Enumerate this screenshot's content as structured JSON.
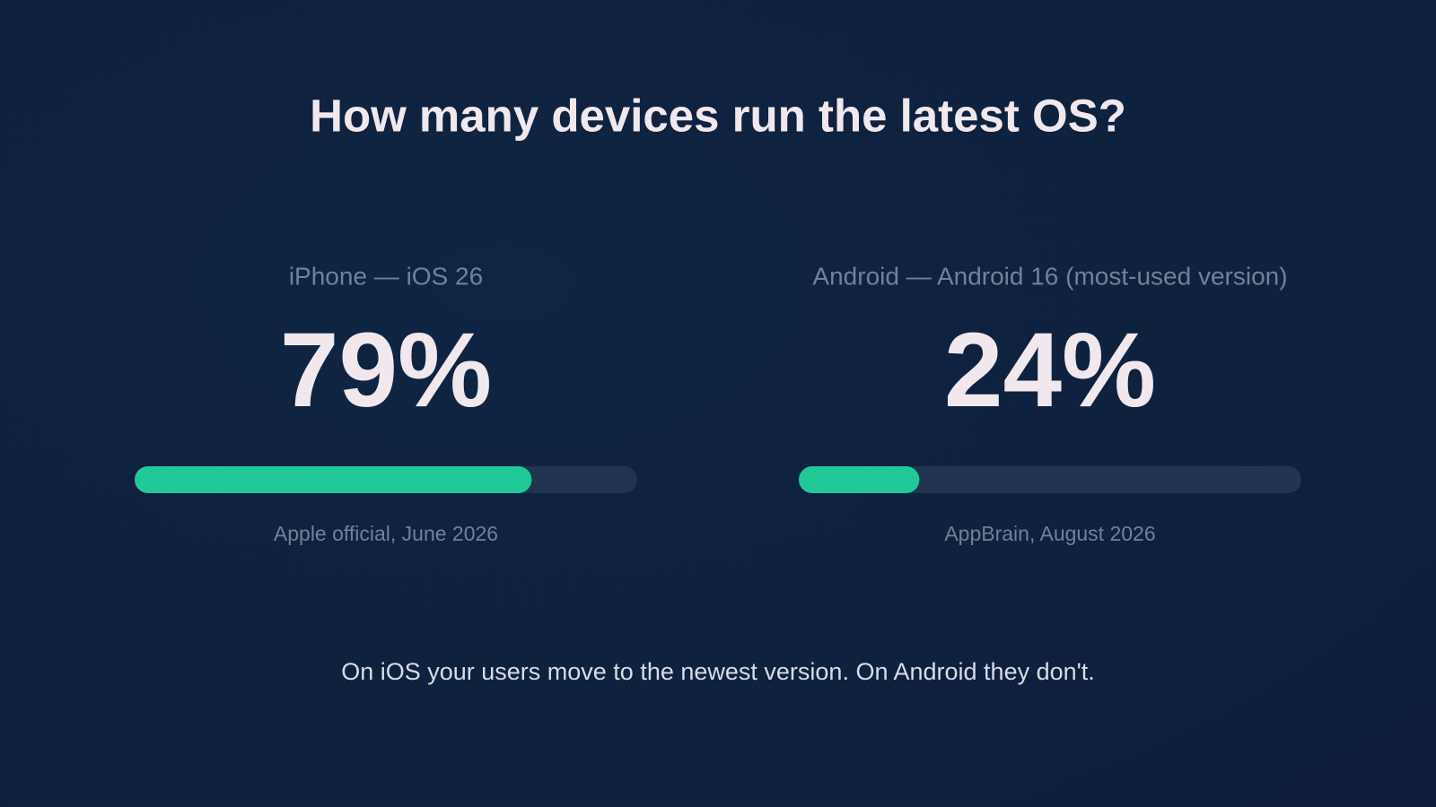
{
  "title": "How many devices run the latest OS?",
  "chart_data": [
    {
      "type": "progress",
      "label": "iPhone — iOS 26",
      "values": [
        79
      ],
      "value_labels": [
        "79%"
      ],
      "xlim": [
        0,
        100
      ],
      "color": "#20c997",
      "track_color": "#22344f",
      "source": "Apple official, June 2026"
    },
    {
      "type": "progress",
      "label": "Android — Android 16 (most-used version)",
      "values": [
        24
      ],
      "value_labels": [
        "24%"
      ],
      "xlim": [
        0,
        100
      ],
      "color": "#20c997",
      "track_color": "#22344f",
      "source": "AppBrain, August 2026"
    }
  ],
  "footnote": "On iOS your users move to the newest version. On Android they don't."
}
